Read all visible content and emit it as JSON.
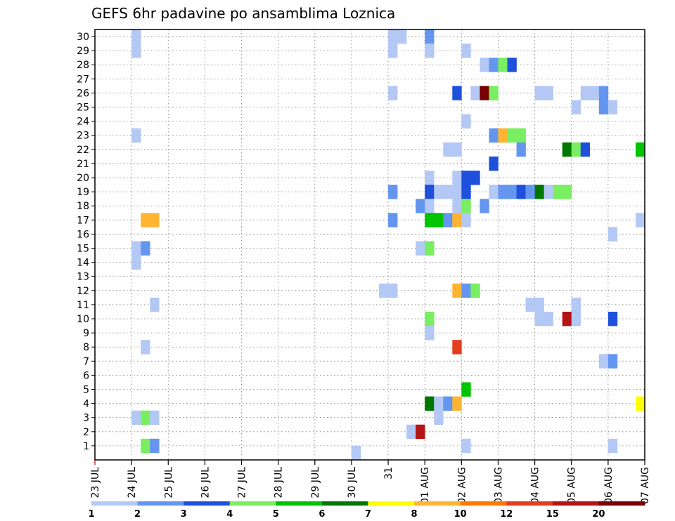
{
  "chart_data": {
    "type": "heatmap",
    "title": "GEFS 6hr padavine po ansamblima Loznica",
    "y_ticks": [
      1,
      2,
      3,
      4,
      5,
      6,
      7,
      8,
      9,
      10,
      11,
      12,
      13,
      14,
      15,
      16,
      17,
      18,
      19,
      20,
      21,
      22,
      23,
      24,
      25,
      26,
      27,
      28,
      29,
      30
    ],
    "x_ticks": [
      "23 JUL",
      "24 JUL",
      "25 JUL",
      "26 JUL",
      "27 JUL",
      "28 JUL",
      "29 JUL",
      "30 JUL",
      "31",
      "01 AUG",
      "02 AUG",
      "03 AUG",
      "04 AUG",
      "05 AUG",
      "06 AUG",
      "07 AUG"
    ],
    "colorbar": {
      "labels": [
        "1",
        "2",
        "3",
        "4",
        "5",
        "6",
        "7",
        "8",
        "10",
        "12",
        "15",
        "20"
      ],
      "colors": [
        "#b4c8f5",
        "#6496f0",
        "#1e50dc",
        "#78ee60",
        "#00c400",
        "#007800",
        "#ffff00",
        "#ffb432",
        "#ff7800",
        "#e63c1e",
        "#b41414",
        "#780000"
      ]
    },
    "cells": [
      {
        "d": "24 JUL 00",
        "m": 29,
        "v": 1
      },
      {
        "d": "24 JUL 00",
        "m": 30,
        "v": 1
      },
      {
        "d": "31 JUL 00",
        "m": 30,
        "v": 1
      },
      {
        "d": "31 JUL 06",
        "m": 30,
        "v": 1
      },
      {
        "d": "01 AUG 00",
        "m": 30,
        "v": 2
      },
      {
        "d": "31 JUL 00",
        "m": 29,
        "v": 1
      },
      {
        "d": "01 AUG 00",
        "m": 29,
        "v": 1
      },
      {
        "d": "02 AUG 00",
        "m": 29,
        "v": 1
      },
      {
        "d": "02 AUG 12",
        "m": 28,
        "v": 1
      },
      {
        "d": "02 AUG 18",
        "m": 28,
        "v": 2
      },
      {
        "d": "03 AUG 00",
        "m": 28,
        "v": 4
      },
      {
        "d": "03 AUG 06",
        "m": 28,
        "v": 3
      },
      {
        "d": "31 JUL 00",
        "m": 26,
        "v": 1
      },
      {
        "d": "01 AUG 18",
        "m": 26,
        "v": 3
      },
      {
        "d": "02 AUG 06",
        "m": 26,
        "v": 1
      },
      {
        "d": "02 AUG 12",
        "m": 26,
        "v": 25
      },
      {
        "d": "02 AUG 18",
        "m": 26,
        "v": 4
      },
      {
        "d": "04 AUG 00",
        "m": 26,
        "v": 1
      },
      {
        "d": "04 AUG 06",
        "m": 26,
        "v": 1
      },
      {
        "d": "05 AUG 06",
        "m": 26,
        "v": 1
      },
      {
        "d": "05 AUG 12",
        "m": 26,
        "v": 1
      },
      {
        "d": "05 AUG 18",
        "m": 26,
        "v": 2
      },
      {
        "d": "05 AUG 00",
        "m": 25,
        "v": 1
      },
      {
        "d": "05 AUG 18",
        "m": 25,
        "v": 2
      },
      {
        "d": "06 AUG 00",
        "m": 25,
        "v": 1
      },
      {
        "d": "02 AUG 00",
        "m": 24,
        "v": 1
      },
      {
        "d": "24 JUL 00",
        "m": 23,
        "v": 1
      },
      {
        "d": "02 AUG 18",
        "m": 23,
        "v": 2
      },
      {
        "d": "03 AUG 00",
        "m": 23,
        "v": 8
      },
      {
        "d": "03 AUG 06",
        "m": 23,
        "v": 4
      },
      {
        "d": "03 AUG 12",
        "m": 23,
        "v": 4
      },
      {
        "d": "01 AUG 12",
        "m": 22,
        "v": 1
      },
      {
        "d": "01 AUG 18",
        "m": 22,
        "v": 1
      },
      {
        "d": "03 AUG 12",
        "m": 22,
        "v": 2
      },
      {
        "d": "04 AUG 18",
        "m": 22,
        "v": 6
      },
      {
        "d": "05 AUG 00",
        "m": 22,
        "v": 4
      },
      {
        "d": "05 AUG 06",
        "m": 22,
        "v": 3
      },
      {
        "d": "06 AUG 18",
        "m": 22,
        "v": 5
      },
      {
        "d": "02 AUG 18",
        "m": 21,
        "v": 3
      },
      {
        "d": "01 AUG 18",
        "m": 20,
        "v": 1
      },
      {
        "d": "01 AUG 00",
        "m": 20,
        "v": 1
      },
      {
        "d": "02 AUG 00",
        "m": 20,
        "v": 3
      },
      {
        "d": "02 AUG 06",
        "m": 20,
        "v": 3
      },
      {
        "d": "01 AUG 18",
        "m": 19,
        "v": 1
      },
      {
        "d": "01 AUG 00",
        "m": 19,
        "v": 3
      },
      {
        "d": "02 AUG 00",
        "m": 19,
        "v": 3
      },
      {
        "d": "02 AUG 18",
        "m": 19,
        "v": 1
      },
      {
        "d": "03 AUG 00",
        "m": 19,
        "v": 2
      },
      {
        "d": "03 AUG 06",
        "m": 19,
        "v": 2
      },
      {
        "d": "03 AUG 12",
        "m": 19,
        "v": 3
      },
      {
        "d": "03 AUG 18",
        "m": 19,
        "v": 2
      },
      {
        "d": "04 AUG 00",
        "m": 19,
        "v": 6
      },
      {
        "d": "04 AUG 06",
        "m": 19,
        "v": 1
      },
      {
        "d": "04 AUG 12",
        "m": 19,
        "v": 4
      },
      {
        "d": "04 AUG 18",
        "m": 19,
        "v": 4
      },
      {
        "d": "31 JUL 00",
        "m": 19,
        "v": 2
      },
      {
        "d": "01 AUG 06",
        "m": 19,
        "v": 1
      },
      {
        "d": "01 AUG 12",
        "m": 19,
        "v": 1
      },
      {
        "d": "31 JUL 18",
        "m": 18,
        "v": 2
      },
      {
        "d": "01 AUG 00",
        "m": 18,
        "v": 1
      },
      {
        "d": "01 AUG 18",
        "m": 18,
        "v": 1
      },
      {
        "d": "02 AUG 00",
        "m": 18,
        "v": 4
      },
      {
        "d": "02 AUG 12",
        "m": 18,
        "v": 2
      },
      {
        "d": "24 JUL 06",
        "m": 17,
        "v": 9
      },
      {
        "d": "24 JUL 12",
        "m": 17,
        "v": 9
      },
      {
        "d": "31 JUL 00",
        "m": 17,
        "v": 2
      },
      {
        "d": "01 AUG 00",
        "m": 17,
        "v": 5
      },
      {
        "d": "01 AUG 06",
        "m": 17,
        "v": 5
      },
      {
        "d": "01 AUG 12",
        "m": 17,
        "v": 2
      },
      {
        "d": "01 AUG 18",
        "m": 17,
        "v": 8
      },
      {
        "d": "02 AUG 00",
        "m": 17,
        "v": 1
      },
      {
        "d": "06 AUG 18",
        "m": 17,
        "v": 1
      },
      {
        "d": "06 AUG 00",
        "m": 16,
        "v": 1
      },
      {
        "d": "24 JUL 00",
        "m": 15,
        "v": 1
      },
      {
        "d": "24 JUL 06",
        "m": 15,
        "v": 2
      },
      {
        "d": "31 JUL 18",
        "m": 15,
        "v": 1
      },
      {
        "d": "01 AUG 00",
        "m": 15,
        "v": 4
      },
      {
        "d": "24 JUL 00",
        "m": 14,
        "v": 1
      },
      {
        "d": "30 JUL 18",
        "m": 12,
        "v": 1
      },
      {
        "d": "31 JUL 00",
        "m": 12,
        "v": 1
      },
      {
        "d": "01 AUG 18",
        "m": 12,
        "v": 8
      },
      {
        "d": "02 AUG 00",
        "m": 12,
        "v": 2
      },
      {
        "d": "02 AUG 06",
        "m": 12,
        "v": 4
      },
      {
        "d": "24 JUL 12",
        "m": 11,
        "v": 1
      },
      {
        "d": "03 AUG 18",
        "m": 11,
        "v": 1
      },
      {
        "d": "04 AUG 00",
        "m": 11,
        "v": 1
      },
      {
        "d": "05 AUG 00",
        "m": 11,
        "v": 1
      },
      {
        "d": "01 AUG 00",
        "m": 10,
        "v": 4
      },
      {
        "d": "04 AUG 00",
        "m": 10,
        "v": 1
      },
      {
        "d": "04 AUG 06",
        "m": 10,
        "v": 1
      },
      {
        "d": "04 AUG 18",
        "m": 10,
        "v": 15
      },
      {
        "d": "05 AUG 00",
        "m": 10,
        "v": 1
      },
      {
        "d": "06 AUG 00",
        "m": 10,
        "v": 3
      },
      {
        "d": "01 AUG 00",
        "m": 9,
        "v": 1
      },
      {
        "d": "24 JUL 06",
        "m": 8,
        "v": 1
      },
      {
        "d": "01 AUG 18",
        "m": 8,
        "v": 12
      },
      {
        "d": "05 AUG 18",
        "m": 7,
        "v": 1
      },
      {
        "d": "06 AUG 00",
        "m": 7,
        "v": 2
      },
      {
        "d": "02 AUG 00",
        "m": 5,
        "v": 5
      },
      {
        "d": "01 AUG 00",
        "m": 4,
        "v": 6
      },
      {
        "d": "01 AUG 06",
        "m": 4,
        "v": 1
      },
      {
        "d": "01 AUG 12",
        "m": 4,
        "v": 2
      },
      {
        "d": "01 AUG 18",
        "m": 4,
        "v": 8
      },
      {
        "d": "06 AUG 18",
        "m": 4,
        "v": 7
      },
      {
        "d": "24 JUL 00",
        "m": 3,
        "v": 1
      },
      {
        "d": "24 JUL 06",
        "m": 3,
        "v": 4
      },
      {
        "d": "24 JUL 12",
        "m": 3,
        "v": 1
      },
      {
        "d": "01 AUG 06",
        "m": 3,
        "v": 1
      },
      {
        "d": "31 JUL 12",
        "m": 2,
        "v": 1
      },
      {
        "d": "31 JUL 18",
        "m": 2,
        "v": 15
      },
      {
        "d": "24 JUL 06",
        "m": 1,
        "v": 4
      },
      {
        "d": "24 JUL 12",
        "m": 1,
        "v": 2
      },
      {
        "d": "02 AUG 00",
        "m": 1,
        "v": 1
      },
      {
        "d": "06 AUG 00",
        "m": 1,
        "v": 1
      },
      {
        "d": "30 JUL 00",
        "m": 0.5,
        "v": 1
      }
    ]
  }
}
